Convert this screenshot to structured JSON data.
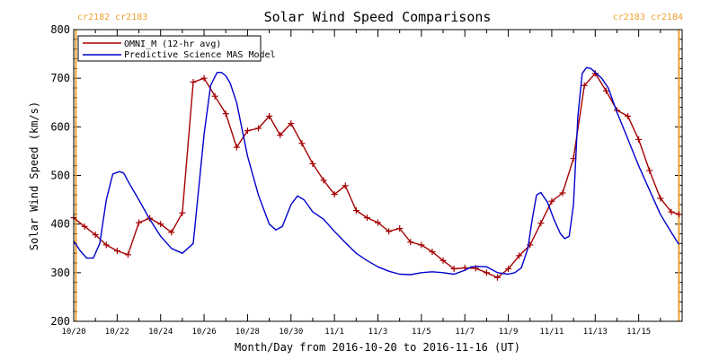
{
  "colors": {
    "omni": "#a50000",
    "mas": "#0000cc",
    "rotation": "#f0a030",
    "axis": "#000000"
  },
  "chart_data": {
    "type": "line",
    "title": "Solar Wind Speed Comparisons",
    "xlabel": "Month/Day from 2016-10-20 to 2016-11-16 (UT)",
    "ylabel": "Solar Wind Speed (km/s)",
    "xlim": [
      0,
      28
    ],
    "ylim": [
      200,
      800
    ],
    "x_start_date": "2016-10-20",
    "x_units": "days from 2016-10-20",
    "yticks": [
      200,
      300,
      400,
      500,
      600,
      700,
      800
    ],
    "xticks": [
      {
        "x": 0,
        "label": "10/20"
      },
      {
        "x": 2,
        "label": "10/22"
      },
      {
        "x": 4,
        "label": "10/24"
      },
      {
        "x": 6,
        "label": "10/26"
      },
      {
        "x": 8,
        "label": "10/28"
      },
      {
        "x": 10,
        "label": "10/30"
      },
      {
        "x": 12,
        "label": "11/1"
      },
      {
        "x": 14,
        "label": "11/3"
      },
      {
        "x": 16,
        "label": "11/5"
      },
      {
        "x": 18,
        "label": "11/7"
      },
      {
        "x": 20,
        "label": "11/9"
      },
      {
        "x": 22,
        "label": "11/11"
      },
      {
        "x": 24,
        "label": "11/13"
      },
      {
        "x": 26,
        "label": "11/15"
      }
    ],
    "legend": {
      "position": "top-left",
      "entries": [
        "OMNI_M (12-hr avg)",
        "Predictive Science MAS Model"
      ]
    },
    "rotation_markers": [
      {
        "x": 0.1,
        "label": "cr2182 cr2183",
        "align": "left"
      },
      {
        "x": 27.85,
        "label": "cr2183 cr2184",
        "align": "right"
      }
    ],
    "series": [
      {
        "name": "OMNI_M (12-hr avg)",
        "marker": "plus",
        "x": [
          0,
          0.5,
          1,
          1.5,
          2,
          2.5,
          3,
          3.5,
          4,
          4.5,
          5,
          5.5,
          6,
          6.5,
          7,
          7.5,
          8,
          8.5,
          9,
          9.5,
          10,
          10.5,
          11,
          11.5,
          12,
          12.5,
          13,
          13.5,
          14,
          14.5,
          15,
          15.5,
          16,
          16.5,
          17,
          17.5,
          18,
          18.5,
          19,
          19.5,
          20,
          20.5,
          21,
          21.5,
          22,
          22.5,
          23,
          23.5,
          24,
          24.5,
          25,
          25.5,
          26,
          26.5,
          27,
          27.5,
          27.85
        ],
        "values": [
          413,
          395,
          378,
          357,
          345,
          337,
          403,
          412,
          400,
          383,
          423,
          692,
          700,
          663,
          627,
          558,
          592,
          597,
          622,
          583,
          607,
          566,
          524,
          490,
          461,
          479,
          428,
          413,
          403,
          385,
          391,
          363,
          357,
          343,
          325,
          308,
          310,
          309,
          300,
          290,
          308,
          335,
          357,
          402,
          447,
          464,
          535,
          685,
          710,
          674,
          634,
          622,
          574,
          510,
          453,
          425,
          420
        ]
      },
      {
        "name": "Predictive Science MAS Model",
        "x": [
          0,
          0.3,
          0.6,
          0.9,
          1.2,
          1.5,
          1.8,
          2.1,
          2.3,
          2.6,
          3.0,
          3.5,
          4.0,
          4.5,
          5.0,
          5.5,
          6.0,
          6.3,
          6.6,
          6.8,
          7.0,
          7.2,
          7.5,
          8.0,
          8.5,
          9.0,
          9.3,
          9.6,
          10.0,
          10.3,
          10.6,
          11.0,
          11.5,
          12.0,
          12.5,
          13.0,
          13.5,
          14.0,
          14.5,
          15.0,
          15.5,
          16.0,
          16.5,
          17.0,
          17.5,
          18.0,
          18.3,
          18.6,
          19.0,
          19.5,
          20.0,
          20.3,
          20.6,
          20.9,
          21.1,
          21.3,
          21.5,
          21.8,
          22.1,
          22.4,
          22.6,
          22.8,
          23.0,
          23.2,
          23.4,
          23.6,
          23.8,
          24.0,
          24.3,
          24.6,
          25.0,
          25.5,
          26.0,
          26.5,
          27.0,
          27.5,
          27.85
        ],
        "values": [
          365,
          345,
          330,
          330,
          360,
          450,
          503,
          508,
          505,
          480,
          450,
          410,
          375,
          350,
          340,
          360,
          585,
          685,
          712,
          712,
          705,
          690,
          650,
          540,
          460,
          400,
          388,
          395,
          440,
          458,
          450,
          425,
          410,
          385,
          362,
          340,
          325,
          312,
          303,
          297,
          296,
          300,
          302,
          300,
          297,
          305,
          312,
          313,
          312,
          300,
          297,
          300,
          310,
          350,
          410,
          460,
          465,
          445,
          410,
          380,
          370,
          375,
          440,
          620,
          710,
          722,
          720,
          712,
          700,
          680,
          630,
          575,
          520,
          470,
          420,
          383,
          358
        ]
      }
    ]
  }
}
